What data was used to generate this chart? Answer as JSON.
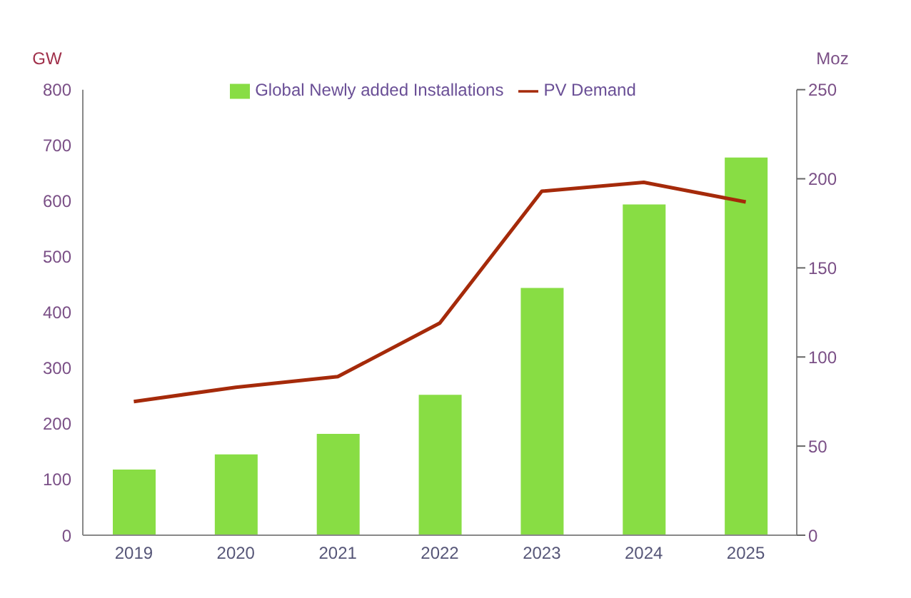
{
  "chart_data": {
    "type": "bar",
    "categories": [
      "2019",
      "2020",
      "2021",
      "2022",
      "2023",
      "2024",
      "2025"
    ],
    "series": [
      {
        "name": "Global Newly added Installations",
        "color": "#88dd44",
        "values": [
          118,
          145,
          182,
          252,
          444,
          594,
          678
        ]
      },
      {
        "name": "PV Demand",
        "type": "line",
        "axis": "y2",
        "color": "#a52a0a",
        "values": [
          75,
          83,
          89,
          119,
          193,
          198,
          187
        ]
      }
    ],
    "ylabel": "GW",
    "y2label": "Moz",
    "ylim": [
      0,
      800
    ],
    "yticks": [
      0,
      100,
      200,
      300,
      400,
      500,
      600,
      700,
      800
    ],
    "y2lim": [
      0,
      250
    ],
    "y2ticks": [
      0,
      50,
      100,
      150,
      200,
      250
    ],
    "grid": false,
    "legend": "top",
    "marker": "none"
  }
}
